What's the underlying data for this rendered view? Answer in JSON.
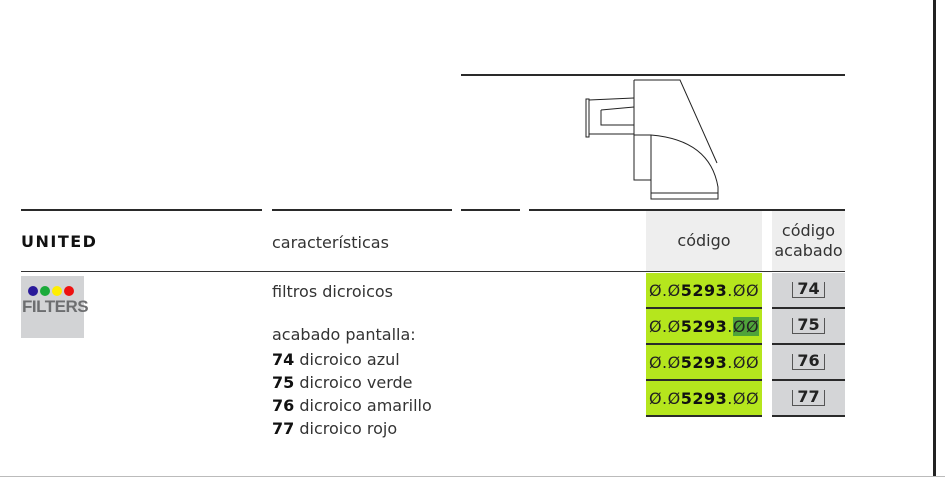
{
  "header": {
    "brand": "UNITED",
    "characteristics_label": "características",
    "code_label": "código",
    "finish_code_label": "código acabado"
  },
  "badge": {
    "text": "FILTERS",
    "dot_colors": [
      "#2a1a9a",
      "#1aaa3a",
      "#ffee00",
      "#ee1111"
    ]
  },
  "description": {
    "line1": "filtros dicroicos",
    "line2": "acabado pantalla:",
    "finishes": [
      {
        "num": "74",
        "name": "dicroico azul"
      },
      {
        "num": "75",
        "name": "dicroico verde"
      },
      {
        "num": "76",
        "name": "dicroico amarillo"
      },
      {
        "num": "77",
        "name": "dicroico rojo"
      }
    ]
  },
  "rows": [
    {
      "prefix": "Ø.Ø",
      "main": "5293",
      "suffix": ".ØØ",
      "finish": "74"
    },
    {
      "prefix": "Ø.Ø",
      "main": "5293",
      "suffix": ".",
      "selected": "ØØ",
      "finish": "75"
    },
    {
      "prefix": "Ø.Ø",
      "main": "5293",
      "suffix": ".ØØ",
      "finish": "76"
    },
    {
      "prefix": "Ø.Ø",
      "main": "5293",
      "suffix": ".ØØ",
      "finish": "77"
    }
  ],
  "colors": {
    "code_bg": "#b5e61d",
    "finish_bg": "#d4d5d7",
    "header_bg": "#eeeeee"
  }
}
